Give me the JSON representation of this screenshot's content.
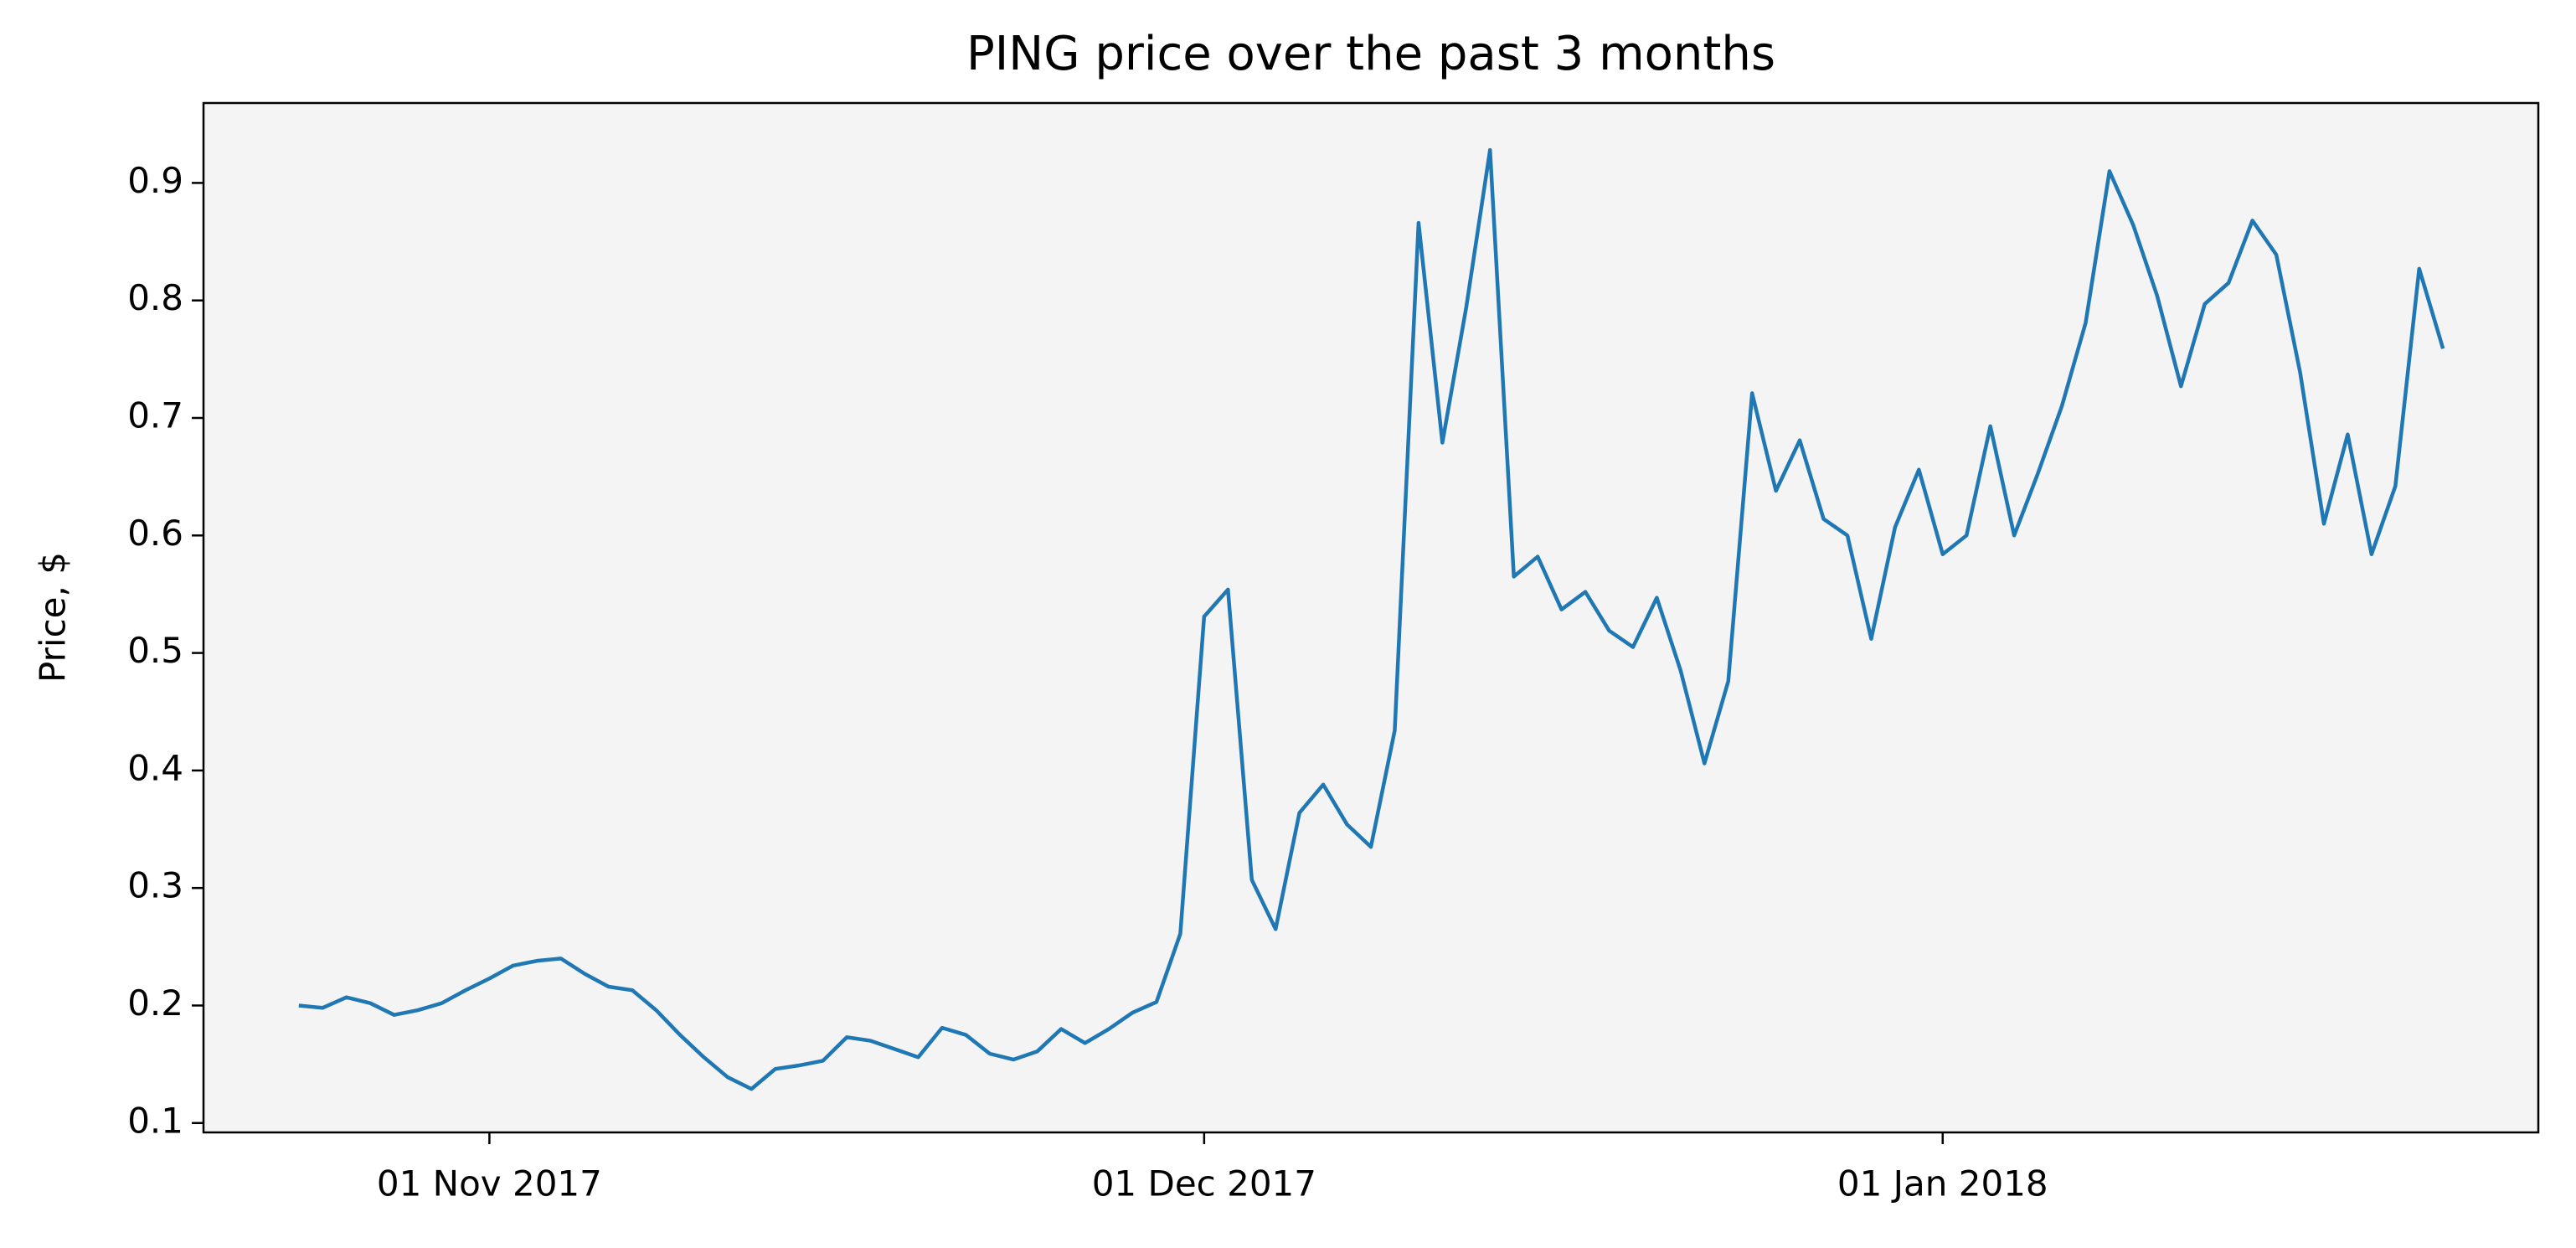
{
  "chart_data": {
    "type": "line",
    "title": "PING price over the past 3 months",
    "y_label": "Price, $",
    "x": [
      "2017-10-24",
      "2017-10-25",
      "2017-10-26",
      "2017-10-27",
      "2017-10-28",
      "2017-10-29",
      "2017-10-30",
      "2017-10-31",
      "2017-11-01",
      "2017-11-02",
      "2017-11-03",
      "2017-11-04",
      "2017-11-05",
      "2017-11-06",
      "2017-11-07",
      "2017-11-08",
      "2017-11-09",
      "2017-11-10",
      "2017-11-11",
      "2017-11-12",
      "2017-11-13",
      "2017-11-14",
      "2017-11-15",
      "2017-11-16",
      "2017-11-17",
      "2017-11-18",
      "2017-11-19",
      "2017-11-20",
      "2017-11-21",
      "2017-11-22",
      "2017-11-23",
      "2017-11-24",
      "2017-11-25",
      "2017-11-26",
      "2017-11-27",
      "2017-11-28",
      "2017-11-29",
      "2017-11-30",
      "2017-12-01",
      "2017-12-02",
      "2017-12-03",
      "2017-12-04",
      "2017-12-05",
      "2017-12-06",
      "2017-12-07",
      "2017-12-08",
      "2017-12-09",
      "2017-12-10",
      "2017-12-11",
      "2017-12-12",
      "2017-12-13",
      "2017-12-14",
      "2017-12-15",
      "2017-12-16",
      "2017-12-17",
      "2017-12-18",
      "2017-12-19",
      "2017-12-20",
      "2017-12-21",
      "2017-12-22",
      "2017-12-23",
      "2017-12-24",
      "2017-12-25",
      "2017-12-26",
      "2017-12-27",
      "2017-12-28",
      "2017-12-29",
      "2017-12-30",
      "2017-12-31",
      "2018-01-01",
      "2018-01-02",
      "2018-01-03",
      "2018-01-04",
      "2018-01-05",
      "2018-01-06",
      "2018-01-07",
      "2018-01-08",
      "2018-01-09",
      "2018-01-10",
      "2018-01-11",
      "2018-01-12",
      "2018-01-13",
      "2018-01-14",
      "2018-01-15",
      "2018-01-16",
      "2018-01-17",
      "2018-01-18",
      "2018-01-19",
      "2018-01-20",
      "2018-01-21",
      "2018-01-22"
    ],
    "series": [
      {
        "name": "PING",
        "color": "#1f77b4",
        "values": [
          0.2,
          0.198,
          0.207,
          0.202,
          0.192,
          0.196,
          0.202,
          0.213,
          0.223,
          0.234,
          0.238,
          0.24,
          0.227,
          0.216,
          0.213,
          0.196,
          0.175,
          0.156,
          0.139,
          0.129,
          0.146,
          0.149,
          0.153,
          0.173,
          0.17,
          0.163,
          0.156,
          0.181,
          0.175,
          0.159,
          0.154,
          0.161,
          0.18,
          0.168,
          0.18,
          0.194,
          0.203,
          0.261,
          0.531,
          0.554,
          0.307,
          0.265,
          0.364,
          0.388,
          0.354,
          0.335,
          0.434,
          0.866,
          0.679,
          0.794,
          0.928,
          0.565,
          0.582,
          0.537,
          0.552,
          0.519,
          0.505,
          0.547,
          0.485,
          0.406,
          0.476,
          0.721,
          0.638,
          0.681,
          0.614,
          0.6,
          0.512,
          0.607,
          0.656,
          0.584,
          0.6,
          0.693,
          0.6,
          0.653,
          0.71,
          0.781,
          0.91,
          0.864,
          0.804,
          0.727,
          0.797,
          0.815,
          0.868,
          0.839,
          0.739,
          0.61,
          0.686,
          0.584,
          0.642,
          0.827,
          0.759
        ]
      }
    ],
    "xlim": [
      "2017-10-20",
      "2018-01-26"
    ],
    "xticks": [
      {
        "value": "2017-11-01",
        "label": "01 Nov 2017"
      },
      {
        "value": "2017-12-01",
        "label": "01 Dec 2017"
      },
      {
        "value": "2018-01-01",
        "label": "01 Jan 2018"
      }
    ],
    "ylim": [
      0.092,
      0.968
    ],
    "yticks": [
      0.1,
      0.2,
      0.3,
      0.4,
      0.5,
      0.6,
      0.7,
      0.8,
      0.9
    ],
    "grid": false
  }
}
